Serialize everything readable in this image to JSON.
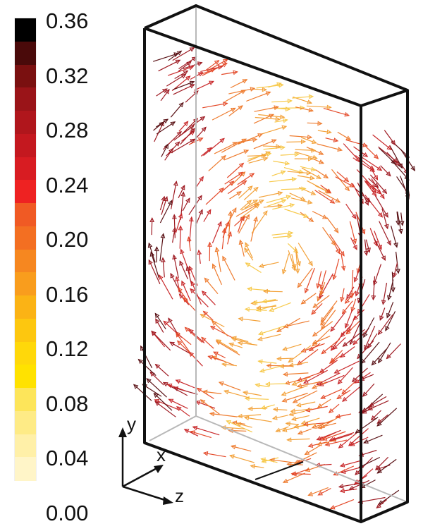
{
  "colorbar": {
    "tick_labels": [
      "0.36",
      "0.32",
      "0.28",
      "0.24",
      "0.20",
      "0.16",
      "0.12",
      "0.08",
      "0.04",
      "0.00"
    ],
    "colors_top_to_bottom": [
      "#000000",
      "#4a0a0a",
      "#7a1010",
      "#9a1418",
      "#b0161c",
      "#c4181f",
      "#d81c22",
      "#ee2222",
      "#f05a24",
      "#f36f22",
      "#f68720",
      "#f99d1d",
      "#fbb315",
      "#fdc70f",
      "#ffd80a",
      "#ffe200",
      "#fde55a",
      "#feeb86",
      "#fff0a8",
      "#fff5c8"
    ]
  },
  "axes": {
    "x_label": "x",
    "y_label": "y",
    "z_label": "z"
  },
  "vector_field": {
    "arrow_colors": [
      "#f7c94a",
      "#f3a23a",
      "#ee7b2e",
      "#e44a2a",
      "#c8282a",
      "#9e1a22",
      "#5a1216"
    ]
  }
}
